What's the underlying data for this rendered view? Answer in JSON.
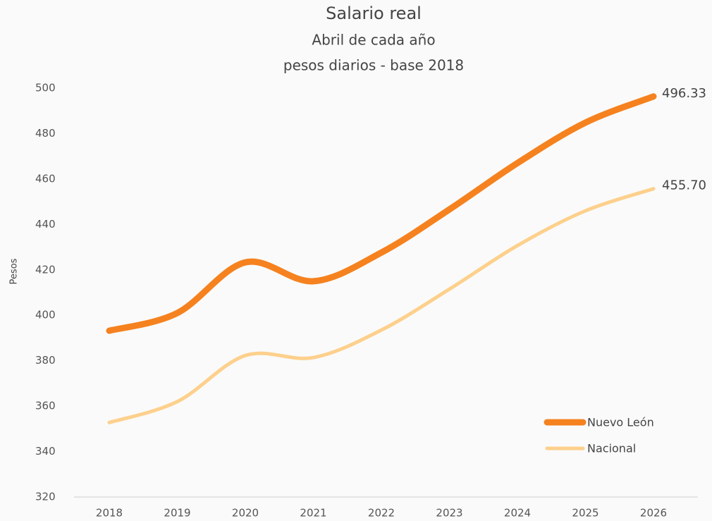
{
  "chart_data": {
    "type": "line",
    "title": "Salario real",
    "subtitle": [
      "Abril de cada año",
      "pesos diarios - base 2018"
    ],
    "ylabel": "Pesos",
    "categories": [
      "2018",
      "2019",
      "2020",
      "2021",
      "2022",
      "2023",
      "2024",
      "2025",
      "2026"
    ],
    "series": [
      {
        "name": "Nuevo León",
        "color": "#f5821f",
        "values": [
          393.2,
          401,
          423.3,
          415,
          427.6,
          446.6,
          467,
          484.8,
          496.33
        ],
        "value_labels": [
          null,
          null,
          null,
          null,
          null,
          null,
          null,
          null,
          "496.33"
        ]
      },
      {
        "name": "Nacional",
        "color": "#fdd08c",
        "values": [
          352.8,
          362,
          382.3,
          381.4,
          393.5,
          411.5,
          430.7,
          446,
          455.7
        ],
        "value_labels": [
          null,
          null,
          null,
          null,
          null,
          null,
          null,
          null,
          "455.70"
        ]
      }
    ],
    "ylim": [
      320,
      500
    ],
    "yticks": [
      320,
      340,
      360,
      380,
      400,
      420,
      440,
      460,
      480,
      500
    ],
    "grid": false,
    "smooth": true,
    "legend": "lower right"
  }
}
